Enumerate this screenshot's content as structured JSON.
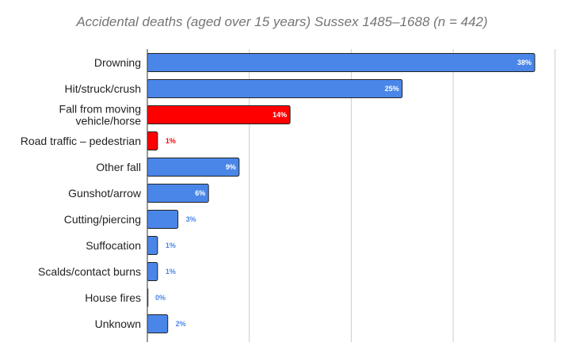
{
  "chart_data": {
    "type": "bar",
    "orientation": "horizontal",
    "title": "Accidental deaths (aged over 15 years) Sussex 1485–1688 (n = 442)",
    "categories": [
      [
        "Drowning"
      ],
      [
        "Hit/struck/crush"
      ],
      [
        "Fall from moving",
        "vehicle/horse"
      ],
      [
        "Road traffic – pedestrian"
      ],
      [
        "Other fall"
      ],
      [
        "Gunshot/arrow"
      ],
      [
        "Cutting/piercing"
      ],
      [
        "Suffocation"
      ],
      [
        "Scalds/contact burns"
      ],
      [
        "House fires"
      ],
      [
        "Unknown"
      ]
    ],
    "values": [
      38,
      25,
      14,
      1,
      9,
      6,
      3,
      1,
      1,
      0,
      2
    ],
    "value_labels": [
      "38%",
      "25%",
      "14%",
      "1%",
      "9%",
      "6%",
      "3%",
      "1%",
      "1%",
      "0%",
      "2%"
    ],
    "bar_colors": [
      "#4a86e8",
      "#4a86e8",
      "#ff0000",
      "#ff0000",
      "#4a86e8",
      "#4a86e8",
      "#4a86e8",
      "#4a86e8",
      "#4a86e8",
      "#4a86e8",
      "#4a86e8"
    ],
    "xlim": [
      0,
      40
    ],
    "grid": true,
    "legend": "none"
  }
}
